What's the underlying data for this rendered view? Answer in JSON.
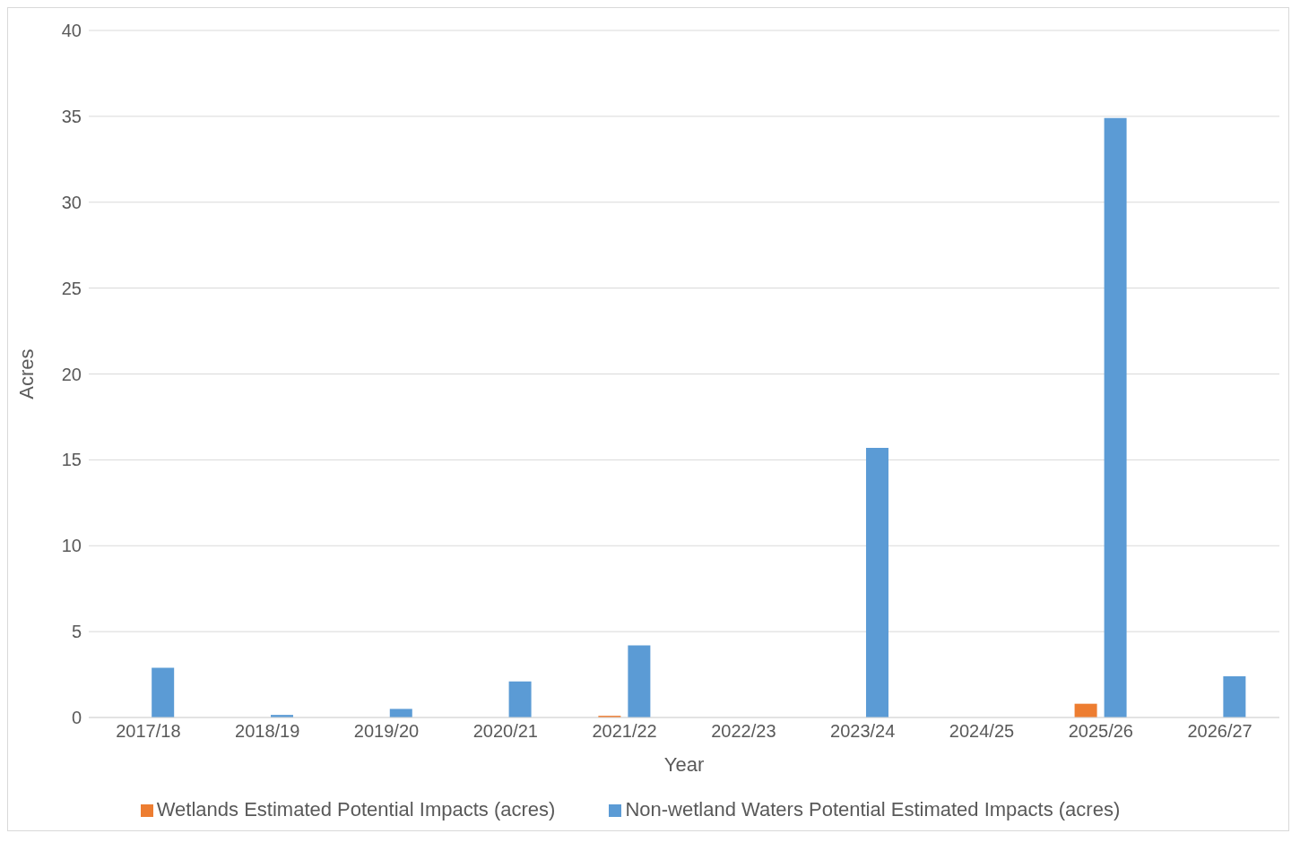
{
  "chart_data": {
    "type": "bar",
    "xlabel": "Year",
    "ylabel": "Acres",
    "categories": [
      "2017/18",
      "2018/19",
      "2019/20",
      "2020/21",
      "2021/22",
      "2022/23",
      "2023/24",
      "2024/25",
      "2025/26",
      "2026/27"
    ],
    "series": [
      {
        "name": "Wetlands Estimated Potential Impacts (acres)",
        "color": "#ed7d31",
        "values": [
          0,
          0,
          0,
          0,
          0.1,
          0,
          null,
          0,
          0.8,
          null
        ]
      },
      {
        "name": "Non-wetland Waters Potential Estimated Impacts (acres)",
        "color": "#5b9bd5",
        "values": [
          2.9,
          0.15,
          0.5,
          2.1,
          4.2,
          0,
          15.7,
          0,
          34.9,
          2.4
        ]
      }
    ],
    "ylim": [
      0,
      40
    ],
    "yticks": [
      0,
      5,
      10,
      15,
      20,
      25,
      30,
      35,
      40
    ],
    "grid": "y",
    "legend": "bottom"
  }
}
